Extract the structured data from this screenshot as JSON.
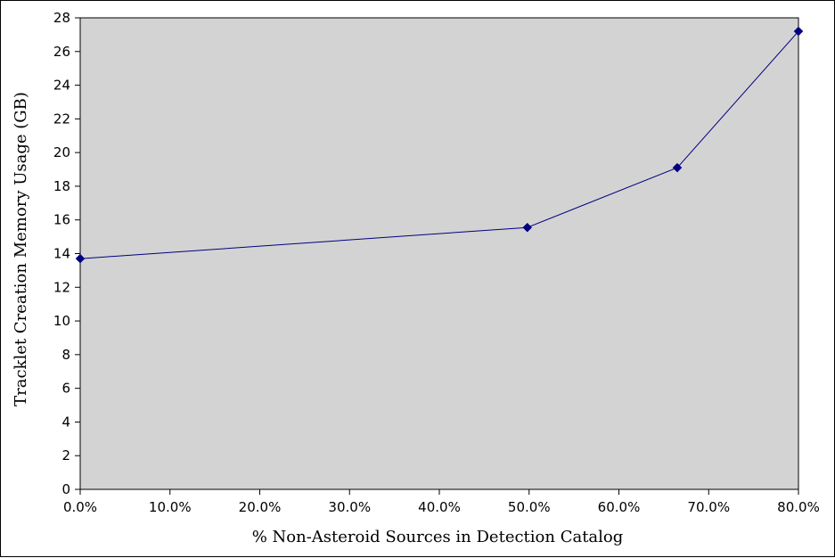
{
  "chart_data": {
    "type": "line",
    "title": "",
    "xlabel": "% Non-Asteroid Sources in Detection Catalog",
    "ylabel": "Tracklet Creation Memory Usage (GB)",
    "xlim": [
      0,
      80
    ],
    "ylim": [
      0,
      28
    ],
    "x_ticks": [
      0,
      10,
      20,
      30,
      40,
      50,
      60,
      70,
      80
    ],
    "x_tick_labels": [
      "0.0%",
      "10.0%",
      "20.0%",
      "30.0%",
      "40.0%",
      "50.0%",
      "60.0%",
      "70.0%",
      "80.0%"
    ],
    "y_ticks": [
      0,
      2,
      4,
      6,
      8,
      10,
      12,
      14,
      16,
      18,
      20,
      22,
      24,
      26,
      28
    ],
    "y_tick_labels": [
      "0",
      "2",
      "4",
      "6",
      "8",
      "10",
      "12",
      "14",
      "16",
      "18",
      "20",
      "22",
      "24",
      "26",
      "28"
    ],
    "grid": false,
    "legend": "none",
    "plot_background": "#d3d3d3",
    "series": [
      {
        "color": "#000080",
        "marker": "diamond",
        "points": [
          {
            "x": 0.0,
            "y": 13.7
          },
          {
            "x": 49.8,
            "y": 15.55
          },
          {
            "x": 66.5,
            "y": 19.1
          },
          {
            "x": 80.0,
            "y": 27.2
          }
        ]
      }
    ]
  }
}
